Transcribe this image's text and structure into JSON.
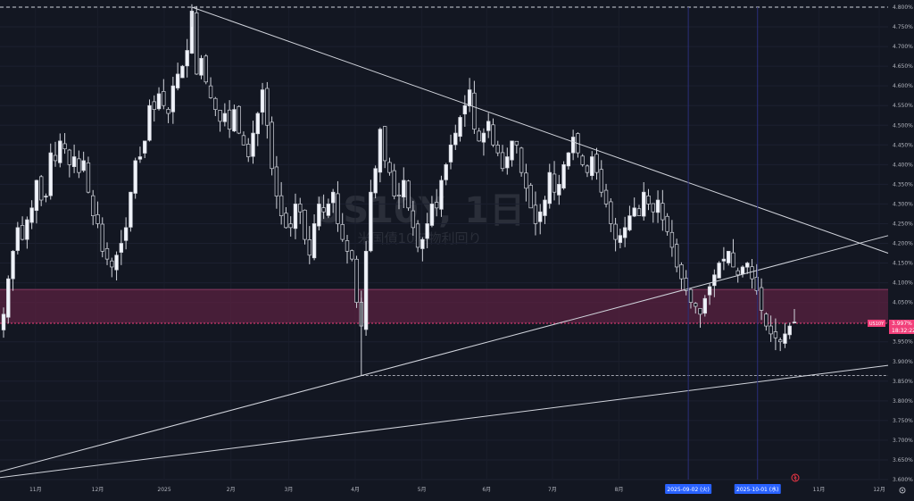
{
  "chart_data": {
    "type": "candlestick",
    "symbol_watermark": "US10Y, 1日",
    "subtitle_watermark": "米国債10年物利回り",
    "ylim": [
      3.6,
      4.8
    ],
    "price_ticks": [
      "4.800%",
      "4.750%",
      "4.700%",
      "4.650%",
      "4.600%",
      "4.550%",
      "4.500%",
      "4.450%",
      "4.400%",
      "4.350%",
      "4.300%",
      "4.250%",
      "4.200%",
      "4.150%",
      "4.100%",
      "4.050%",
      "4.000%",
      "3.950%",
      "3.900%",
      "3.850%",
      "3.800%",
      "3.750%",
      "3.700%",
      "3.650%",
      "3.600%"
    ],
    "time_ticks": [
      {
        "label": "11月",
        "t": 0.04
      },
      {
        "label": "12月",
        "t": 0.11
      },
      {
        "label": "2025",
        "t": 0.185
      },
      {
        "label": "2月",
        "t": 0.26
      },
      {
        "label": "3月",
        "t": 0.325
      },
      {
        "label": "4月",
        "t": 0.4
      },
      {
        "label": "5月",
        "t": 0.475
      },
      {
        "label": "6月",
        "t": 0.548
      },
      {
        "label": "7月",
        "t": 0.622
      },
      {
        "label": "8月",
        "t": 0.697
      },
      {
        "label": "11月",
        "t": 0.922
      },
      {
        "label": "12月",
        "t": 0.99
      }
    ],
    "date_markers": [
      {
        "label": "2025-09-02 (火)",
        "t": 0.775
      },
      {
        "label": "2025-10-01 (水)",
        "t": 0.853
      }
    ],
    "current_price": {
      "symbol": "US10Y",
      "value": "3.997%",
      "countdown": "18:32:22"
    },
    "zone": {
      "top": 4.083,
      "bottom": 3.997
    },
    "series": [
      4.02,
      4.11,
      4.18,
      4.24,
      4.21,
      4.26,
      4.29,
      4.36,
      4.31,
      4.32,
      4.43,
      4.41,
      4.46,
      4.44,
      4.4,
      4.42,
      4.38,
      4.41,
      4.33,
      4.27,
      4.25,
      4.18,
      4.16,
      4.14,
      4.17,
      4.2,
      4.24,
      4.33,
      4.41,
      4.42,
      4.46,
      4.55,
      4.54,
      4.58,
      4.55,
      4.53,
      4.6,
      4.63,
      4.65,
      4.69,
      4.79,
      4.63,
      4.67,
      4.61,
      4.57,
      4.54,
      4.51,
      4.53,
      4.49,
      4.54,
      4.48,
      4.45,
      4.42,
      4.48,
      4.53,
      4.59,
      4.5,
      4.39,
      4.32,
      4.27,
      4.24,
      4.24,
      4.3,
      4.28,
      4.21,
      4.17,
      4.25,
      4.3,
      4.28,
      4.3,
      4.33,
      4.25,
      4.21,
      4.18,
      4.16,
      4.05,
      3.99,
      4.18,
      4.33,
      4.39,
      4.49,
      4.41,
      4.38,
      4.32,
      4.32,
      4.36,
      4.29,
      4.24,
      4.19,
      4.21,
      4.25,
      4.3,
      4.29,
      4.36,
      4.4,
      4.45,
      4.48,
      4.52,
      4.55,
      4.59,
      4.49,
      4.46,
      4.48,
      4.51,
      4.45,
      4.43,
      4.39,
      4.42,
      4.46,
      4.45,
      4.38,
      4.34,
      4.29,
      4.25,
      4.28,
      4.31,
      4.38,
      4.33,
      4.35,
      4.4,
      4.43,
      4.47,
      4.43,
      4.4,
      4.38,
      4.42,
      4.38,
      4.33,
      4.3,
      4.25,
      4.21,
      4.22,
      4.24,
      4.27,
      4.29,
      4.27,
      4.33,
      4.3,
      4.28,
      4.31,
      4.26,
      4.23,
      4.19,
      4.14,
      4.11,
      4.08,
      4.05,
      4.04,
      4.02,
      4.06,
      4.09,
      4.12,
      4.15,
      4.16,
      4.18,
      4.14,
      4.12,
      4.14,
      4.15,
      4.11,
      4.08,
      4.03,
      3.99,
      3.97,
      3.96,
      3.95,
      3.97,
      3.99,
      4.0
    ],
    "levels": [
      {
        "name": "top-dashed",
        "value": 4.8
      },
      {
        "name": "low-dashed",
        "value": 3.864
      }
    ]
  }
}
